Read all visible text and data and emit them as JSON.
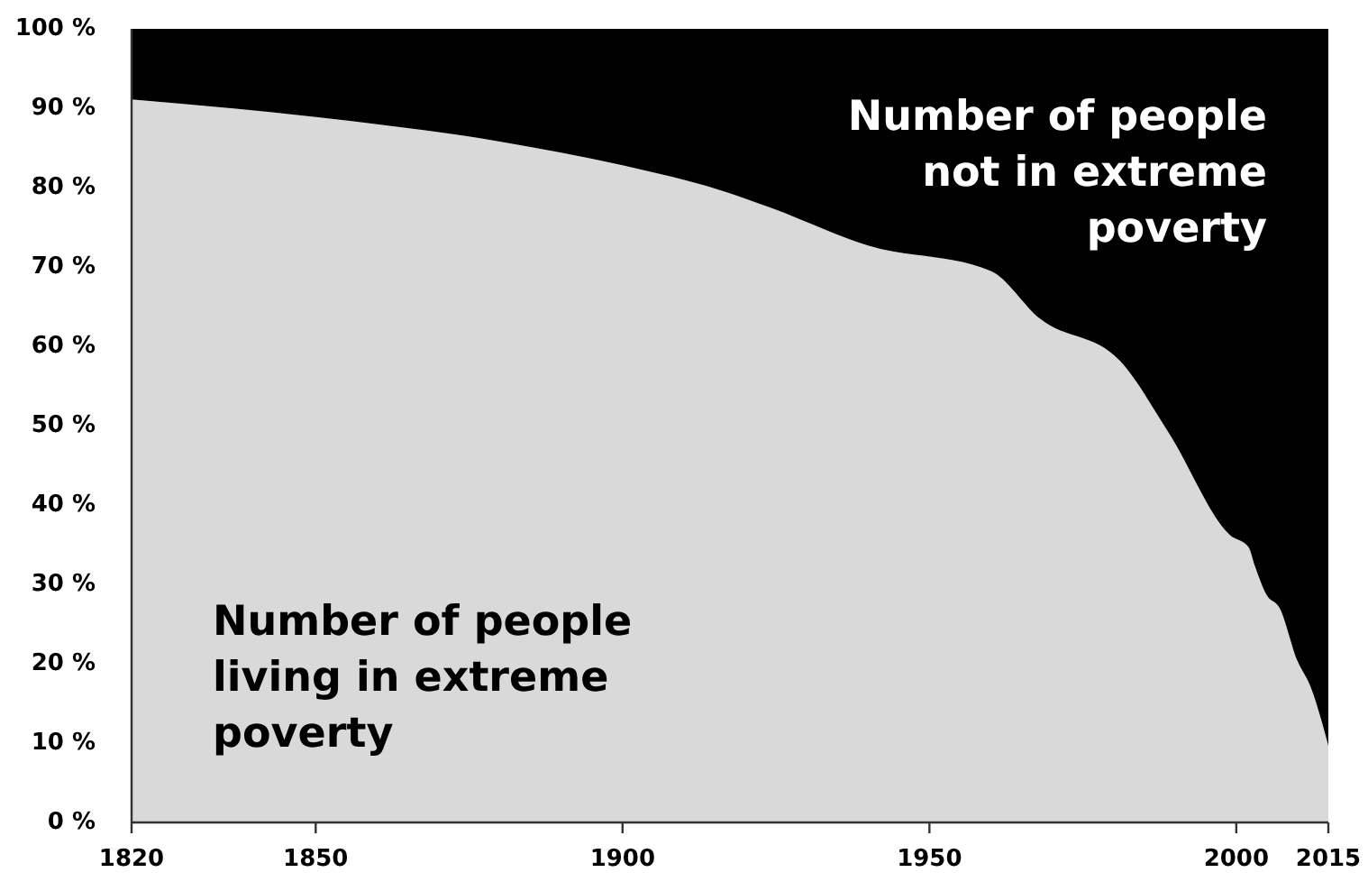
{
  "chart_data": {
    "type": "area",
    "stacked": true,
    "legend": false,
    "grid": false,
    "x": [
      1820,
      1850,
      1880,
      1900,
      1917,
      1924,
      1940,
      1960,
      1968,
      1981,
      1989,
      1999,
      2002,
      2003,
      2005,
      2007,
      2010,
      2012,
      2015
    ],
    "series": [
      {
        "name": "Number of people living in extreme poverty",
        "color": "#d9d9d9",
        "values": [
          91.1,
          88.9,
          85.8,
          82.8,
          79.4,
          77.5,
          72.7,
          69.5,
          63.5,
          58.2,
          49.1,
          36.2,
          34.7,
          32.4,
          28.6,
          27.1,
          20.3,
          17.3,
          9.7
        ]
      },
      {
        "name": "Number of people not in extreme poverty",
        "color": "#000000",
        "values": [
          8.9,
          11.1,
          14.2,
          17.2,
          20.6,
          22.5,
          27.3,
          30.5,
          36.5,
          41.8,
          50.9,
          63.8,
          65.3,
          67.6,
          71.4,
          72.9,
          79.7,
          82.7,
          90.3
        ]
      }
    ],
    "xlim": [
      1820,
      2015
    ],
    "xticks": [
      1820,
      1850,
      1900,
      1950,
      2000,
      2015
    ],
    "ylim": [
      0,
      100
    ],
    "yticks": [
      {
        "value": 0,
        "label": "0 %"
      },
      {
        "value": 10,
        "label": "10 %"
      },
      {
        "value": 20,
        "label": "20 %"
      },
      {
        "value": 30,
        "label": "30 %"
      },
      {
        "value": 40,
        "label": "40 %"
      },
      {
        "value": 50,
        "label": "50 %"
      },
      {
        "value": 60,
        "label": "60 %"
      },
      {
        "value": 70,
        "label": "70 %"
      },
      {
        "value": 80,
        "label": "80 %"
      },
      {
        "value": 90,
        "label": "90 %"
      },
      {
        "value": 100,
        "label": "100 %"
      }
    ]
  }
}
